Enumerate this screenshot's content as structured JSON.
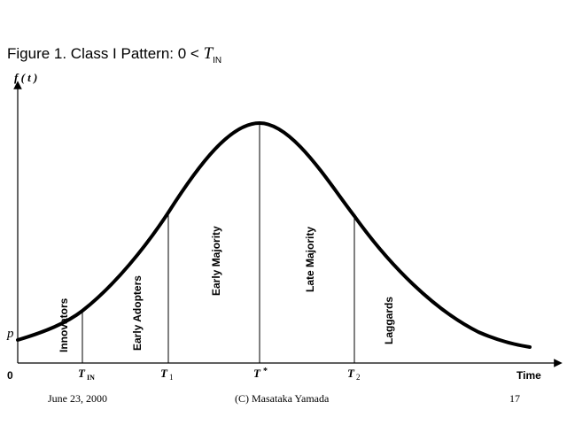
{
  "title": {
    "prefix": "Figure 1. Class I Pattern: 0 < ",
    "var": "T",
    "sub": "IN"
  },
  "chart_data": {
    "type": "diagram",
    "y_axis_label": "f ( t )",
    "p_label": "p",
    "origin_label": "0",
    "x_axis_label": "Time",
    "markers": [
      {
        "id": "t_in",
        "var": "T",
        "sub": "IN"
      },
      {
        "id": "t1",
        "var": "T",
        "sub": "1"
      },
      {
        "id": "tstar",
        "var": "T",
        "sub": "*"
      },
      {
        "id": "t2",
        "var": "T",
        "sub": "2"
      }
    ],
    "regions": [
      "Innovators",
      "Early Adopters",
      "Early Majority",
      "Late Majority",
      "Laggards"
    ]
  },
  "footer": {
    "date": "June 23, 2000",
    "author": "(C) Masataka Yamada",
    "page": "17"
  }
}
